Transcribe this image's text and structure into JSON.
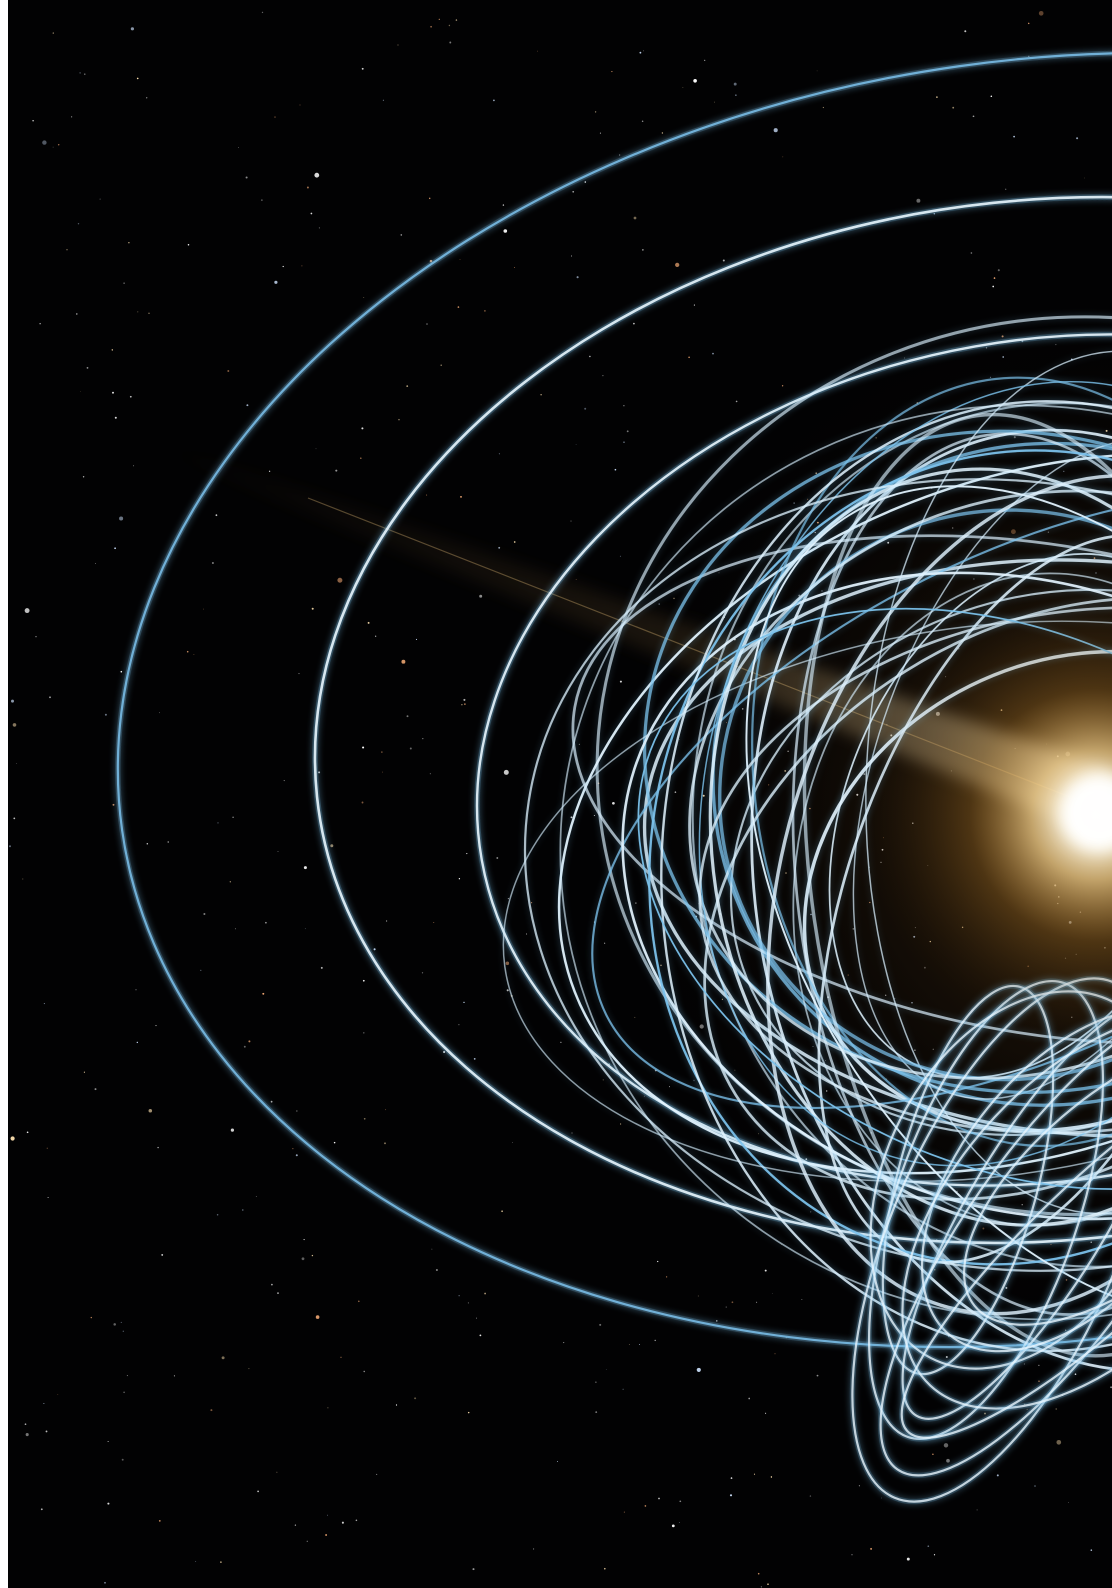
{
  "image": {
    "subject": "magnetar-field-lines",
    "colors": {
      "background": "#020203",
      "field_line": "#7cc2ec",
      "field_line_core": "#e8f6ff",
      "star_glow_center": "#fffdf2",
      "star_glow_outer": "#b87f2c",
      "jet_streak": "#d9a860"
    }
  }
}
